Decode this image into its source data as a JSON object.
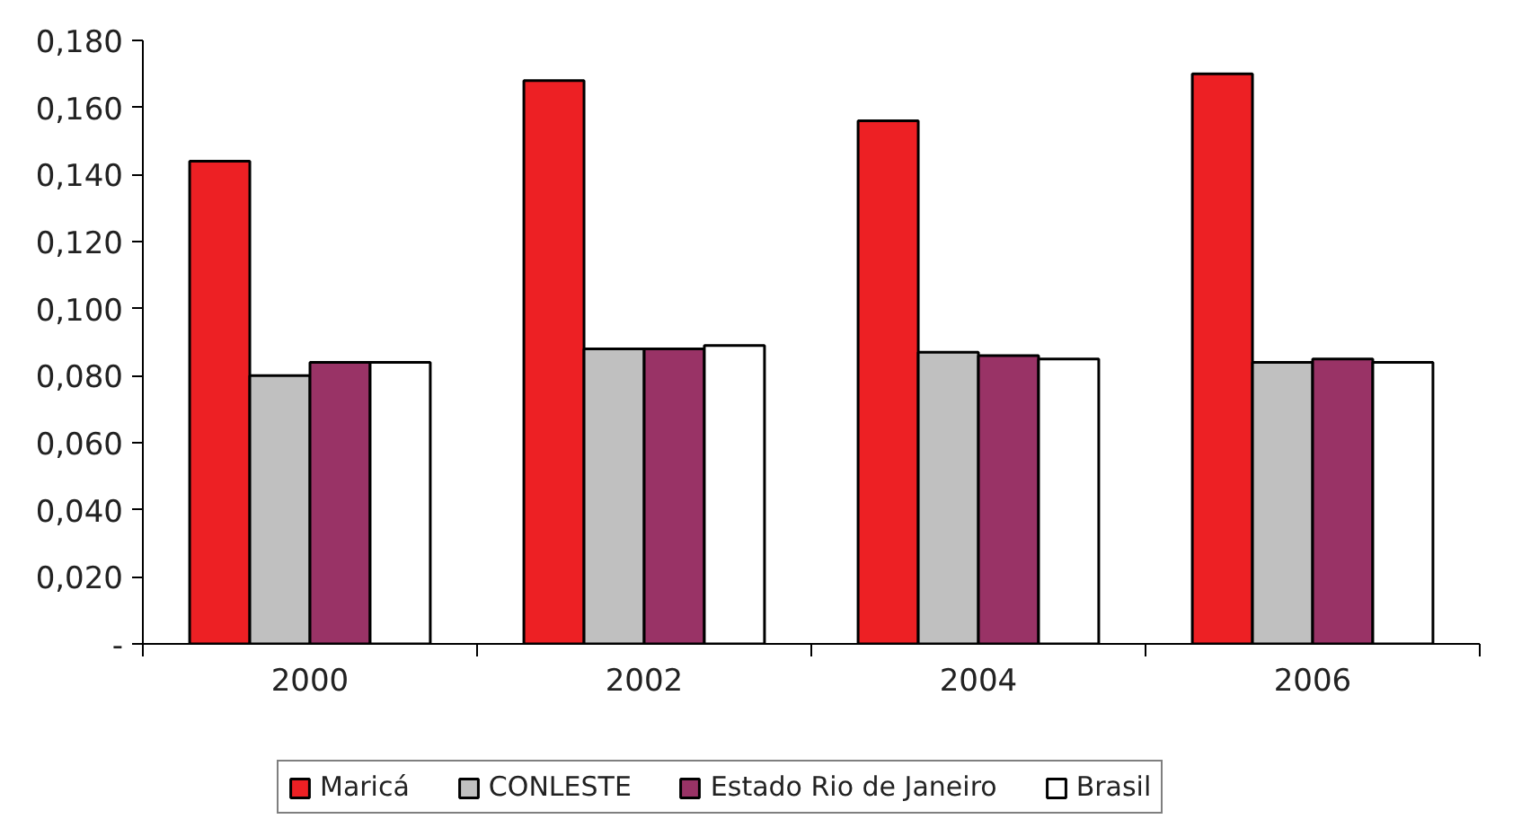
{
  "chart_data": {
    "type": "bar",
    "categories": [
      "2000",
      "2002",
      "2004",
      "2006"
    ],
    "series": [
      {
        "name": "Maricá",
        "color": "#ed2024",
        "values": [
          0.144,
          0.168,
          0.156,
          0.17
        ]
      },
      {
        "name": "CONLESTE",
        "color": "#c0c0c0",
        "values": [
          0.08,
          0.088,
          0.087,
          0.084
        ]
      },
      {
        "name": "Estado Rio de Janeiro",
        "color": "#993366",
        "values": [
          0.084,
          0.088,
          0.086,
          0.085
        ]
      },
      {
        "name": "Brasil",
        "color": "#ffffff",
        "values": [
          0.084,
          0.089,
          0.085,
          0.084
        ]
      }
    ],
    "ylim": [
      0,
      0.18
    ],
    "yticks": [
      {
        "value": 0,
        "label": "-"
      },
      {
        "value": 0.02,
        "label": "0,020"
      },
      {
        "value": 0.04,
        "label": "0,040"
      },
      {
        "value": 0.06,
        "label": "0,060"
      },
      {
        "value": 0.08,
        "label": "0,080"
      },
      {
        "value": 0.1,
        "label": "0,100"
      },
      {
        "value": 0.12,
        "label": "0,120"
      },
      {
        "value": 0.14,
        "label": "0,140"
      },
      {
        "value": 0.16,
        "label": "0,160"
      },
      {
        "value": 0.18,
        "label": "0,180"
      }
    ],
    "grid": false,
    "legend": "bottom"
  }
}
